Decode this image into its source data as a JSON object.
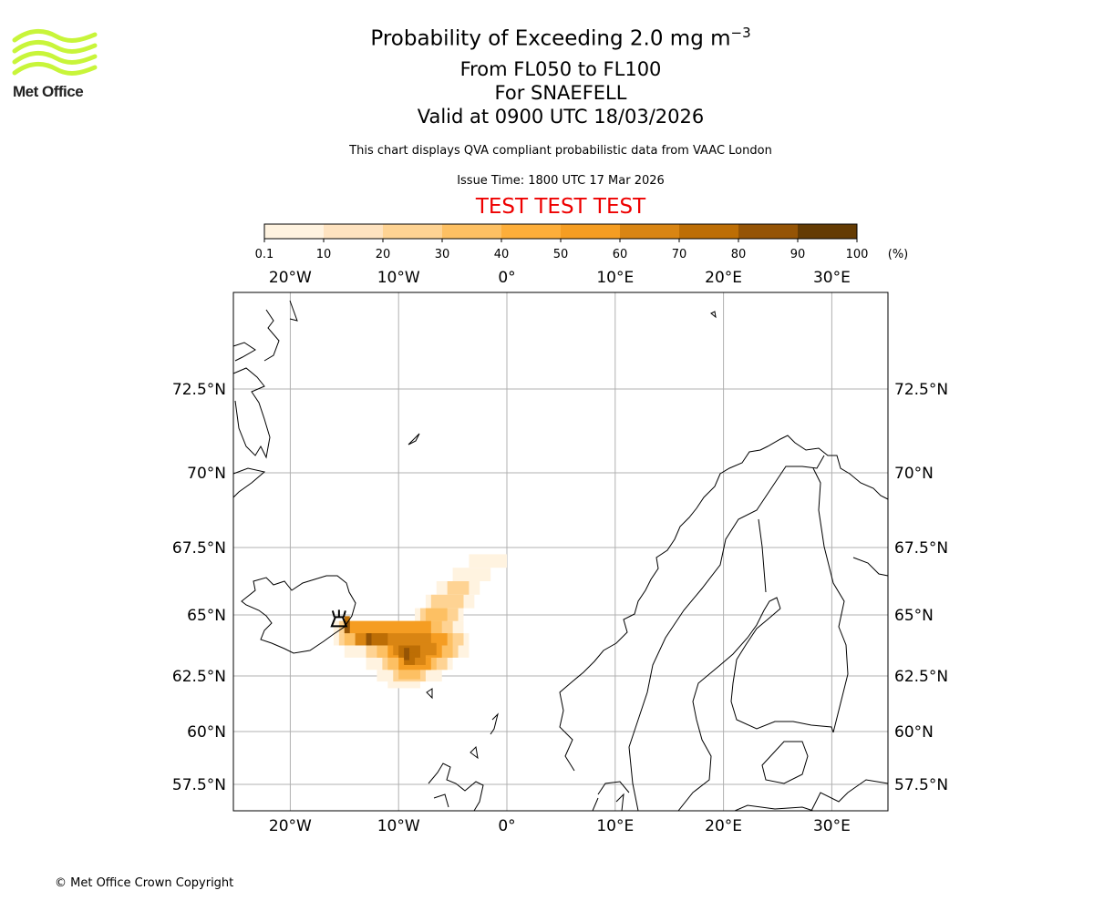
{
  "logo_text": "Met Office",
  "title": {
    "main": "Probability of Exceeding 2.0 mg m",
    "main_sup": "−3",
    "line2": "From FL050 to FL100",
    "line3": "For SNAEFELL",
    "line4": "Valid at 0900 UTC 18/03/2026"
  },
  "subtitle": "This chart displays QVA compliant probabilistic data from VAAC London",
  "issue_time": "Issue Time: 1800 UTC 17 Mar 2026",
  "test_banner": "TEST TEST TEST",
  "test_color": "#ee0000",
  "copyright": "© Met Office Crown Copyright",
  "chart_data": {
    "type": "heatmap",
    "title": "Probability of Exceeding 2.0 mg m-3",
    "colorbar": {
      "unit": "(%)",
      "ticks": [
        "0.1",
        "10",
        "20",
        "30",
        "40",
        "50",
        "60",
        "70",
        "80",
        "90",
        "100"
      ],
      "colors": [
        "#fff3e0",
        "#fee3c0",
        "#fed393",
        "#fdc063",
        "#fdae3a",
        "#f59d22",
        "#d98513",
        "#bd6e05",
        "#955405",
        "#643b03"
      ]
    },
    "x_ticks": [
      {
        "lon": -20,
        "label": "20°W"
      },
      {
        "lon": -10,
        "label": "10°W"
      },
      {
        "lon": 0,
        "label": "0°"
      },
      {
        "lon": 10,
        "label": "10°E"
      },
      {
        "lon": 20,
        "label": "20°E"
      },
      {
        "lon": 30,
        "label": "30°E"
      }
    ],
    "y_ticks": [
      {
        "lat": 72.5,
        "label": "72.5°N"
      },
      {
        "lat": 70,
        "label": "70°N"
      },
      {
        "lat": 67.5,
        "label": "67.5°N"
      },
      {
        "lat": 65,
        "label": "65°N"
      },
      {
        "lat": 62.5,
        "label": "62.5°N"
      },
      {
        "lat": 60,
        "label": "60°N"
      },
      {
        "lat": 57.5,
        "label": "57.5°N"
      }
    ],
    "lon_range": [
      -25.2,
      35.2
    ],
    "lat_range": [
      56.6,
      75.5
    ],
    "volcano": {
      "name": "SNAEFELL",
      "lon": -15.5,
      "lat": 64.8
    },
    "plume_spans": [
      {
        "pct": 5,
        "lat": 67.0,
        "lon": [
          -3.5,
          0
        ]
      },
      {
        "pct": 5,
        "lat": 66.5,
        "lon": [
          -5,
          -1.5
        ]
      },
      {
        "pct": 5,
        "lat": 66.0,
        "lon": [
          -6.5,
          -2.5
        ]
      },
      {
        "pct": 5,
        "lat": 65.5,
        "lon": [
          -7.5,
          -3
        ]
      },
      {
        "pct": 5,
        "lat": 65.0,
        "lon": [
          -8.5,
          -4
        ]
      },
      {
        "pct": 5,
        "lat": 64.5,
        "lon": [
          -16,
          -4
        ]
      },
      {
        "pct": 5,
        "lat": 64.0,
        "lon": [
          -16,
          -3.5
        ]
      },
      {
        "pct": 5,
        "lat": 63.5,
        "lon": [
          -15,
          -3.5
        ]
      },
      {
        "pct": 5,
        "lat": 63.0,
        "lon": [
          -13,
          -5
        ]
      },
      {
        "pct": 5,
        "lat": 62.5,
        "lon": [
          -12,
          -6
        ]
      },
      {
        "pct": 5,
        "lat": 62.2,
        "lon": [
          -11,
          -8
        ]
      },
      {
        "pct": 25,
        "lat": 66.0,
        "lon": [
          -5.5,
          -3.5
        ]
      },
      {
        "pct": 25,
        "lat": 65.5,
        "lon": [
          -7,
          -4
        ]
      },
      {
        "pct": 25,
        "lat": 65.0,
        "lon": [
          -8,
          -4.5
        ]
      },
      {
        "pct": 25,
        "lat": 64.5,
        "lon": [
          -15.5,
          -5
        ]
      },
      {
        "pct": 25,
        "lat": 64.0,
        "lon": [
          -15.5,
          -4
        ]
      },
      {
        "pct": 25,
        "lat": 63.5,
        "lon": [
          -13,
          -4.5
        ]
      },
      {
        "pct": 25,
        "lat": 63.0,
        "lon": [
          -11.5,
          -5.5
        ]
      },
      {
        "pct": 25,
        "lat": 62.5,
        "lon": [
          -10.5,
          -7.5
        ]
      },
      {
        "pct": 35,
        "lat": 65.0,
        "lon": [
          -7.5,
          -5.5
        ]
      },
      {
        "pct": 35,
        "lat": 64.5,
        "lon": [
          -14.5,
          -6
        ]
      },
      {
        "pct": 35,
        "lat": 64.0,
        "lon": [
          -15,
          -5
        ]
      },
      {
        "pct": 35,
        "lat": 63.5,
        "lon": [
          -12,
          -5
        ]
      },
      {
        "pct": 35,
        "lat": 63.0,
        "lon": [
          -11,
          -6.5
        ]
      },
      {
        "pct": 35,
        "lat": 62.6,
        "lon": [
          -10,
          -8
        ]
      },
      {
        "pct": 55,
        "lat": 64.5,
        "lon": [
          -15,
          -7
        ]
      },
      {
        "pct": 55,
        "lat": 64.0,
        "lon": [
          -14,
          -5.5
        ]
      },
      {
        "pct": 55,
        "lat": 63.5,
        "lon": [
          -11,
          -6
        ]
      },
      {
        "pct": 55,
        "lat": 63.0,
        "lon": [
          -10,
          -7
        ]
      },
      {
        "pct": 65,
        "lat": 64.0,
        "lon": [
          -14,
          -7
        ]
      },
      {
        "pct": 65,
        "lat": 63.6,
        "lon": [
          -10.5,
          -6.5
        ]
      },
      {
        "pct": 65,
        "lat": 63.2,
        "lon": [
          -9.5,
          -7.5
        ]
      },
      {
        "pct": 75,
        "lat": 64.7,
        "lon": [
          -15,
          -14.5
        ]
      },
      {
        "pct": 75,
        "lat": 64.0,
        "lon": [
          -12.5,
          -11
        ]
      },
      {
        "pct": 75,
        "lat": 63.5,
        "lon": [
          -10,
          -8
        ]
      },
      {
        "pct": 75,
        "lat": 63.2,
        "lon": [
          -9.5,
          -8.5
        ]
      },
      {
        "pct": 85,
        "lat": 64.5,
        "lon": [
          -15,
          -14.5
        ]
      },
      {
        "pct": 85,
        "lat": 64.0,
        "lon": [
          -13,
          -12.5
        ]
      },
      {
        "pct": 85,
        "lat": 63.4,
        "lon": [
          -9.5,
          -9
        ]
      }
    ]
  }
}
